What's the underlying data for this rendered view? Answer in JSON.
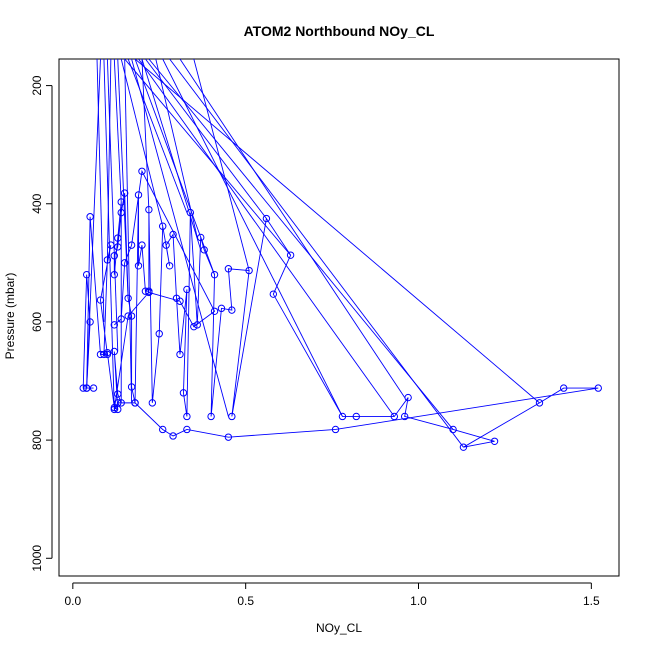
{
  "chart_data": {
    "type": "line",
    "title": "ATOM2 Northbound NOy_CL",
    "xlabel": "NOy_CL",
    "ylabel": "Pressure (mbar)",
    "xlim": [
      -0.04,
      1.58
    ],
    "ylim": [
      1030,
      155
    ],
    "y_reversed": true,
    "x_ticks": [
      "0.0",
      "0.5",
      "1.0",
      "1.5"
    ],
    "y_ticks": [
      "200",
      "400",
      "600",
      "800",
      "1000"
    ],
    "marker": "open-circle",
    "grid": false,
    "legend": "none",
    "series_color": "#0000ff",
    "series": [
      {
        "x": [
          0.06,
          0.04,
          0.05,
          0.04,
          0.03,
          0.04,
          0.05,
          0.08,
          0.1,
          0.08,
          0.11,
          0.1,
          0.09,
          0.1,
          0.12,
          0.13,
          0.12,
          0.13,
          0.14,
          0.14,
          0.13,
          0.12,
          0.12,
          0.13,
          0.14,
          0.15,
          0.16,
          0.17,
          0.17,
          0.18,
          0.19,
          0.19,
          0.2,
          0.21,
          0.22,
          0.22,
          0.23,
          0.25,
          0.26,
          0.28,
          0.27,
          0.29,
          0.3,
          0.31,
          0.33,
          0.32,
          0.33,
          0.34,
          0.36,
          0.37,
          0.38,
          0.41,
          0.4,
          0.43,
          0.46,
          0.45,
          0.51,
          0.46,
          0.56,
          0.63,
          0.58,
          0.78,
          0.82,
          0.93,
          0.97,
          0.96,
          1.1,
          1.22,
          1.13,
          1.35,
          1.42,
          1.52,
          0.76,
          0.45,
          0.33,
          0.29,
          0.26,
          0.18,
          0.13,
          0.12,
          0.16,
          0.22,
          0.31,
          0.35,
          0.41,
          0.2,
          0.17,
          0.15,
          0.14,
          0.12
        ],
        "y": [
          712,
          712,
          600,
          520,
          712,
          712,
          422,
          655,
          655,
          563,
          470,
          495,
          655,
          652,
          745,
          748,
          650,
          722,
          737,
          397,
          458,
          520,
          488,
          473,
          415,
          382,
          560,
          590,
          710,
          737,
          385,
          505,
          470,
          548,
          548,
          410,
          737,
          620,
          438,
          505,
          470,
          452,
          560,
          655,
          545,
          720,
          760,
          415,
          605,
          457,
          478,
          520,
          760,
          577,
          580,
          510,
          513,
          760,
          425,
          487,
          553,
          760,
          760,
          760,
          728,
          760,
          782,
          802,
          812,
          737,
          712,
          712,
          782,
          795,
          782,
          793,
          782,
          737,
          737,
          748,
          590,
          550,
          565,
          608,
          582,
          345,
          470,
          500,
          595,
          605
        ]
      }
    ],
    "upper_segments": [
      {
        "x": [
          0.07,
          0.09
        ],
        "y": [
          155,
          600
        ]
      },
      {
        "x": [
          0.08,
          0.04
        ],
        "y": [
          155,
          712
        ]
      },
      {
        "x": [
          0.09,
          0.12
        ],
        "y": [
          155,
          750
        ]
      },
      {
        "x": [
          0.1,
          0.13
        ],
        "y": [
          155,
          650
        ]
      },
      {
        "x": [
          0.11,
          0.1
        ],
        "y": [
          155,
          495
        ]
      },
      {
        "x": [
          0.12,
          0.14
        ],
        "y": [
          155,
          397
        ]
      },
      {
        "x": [
          0.13,
          0.16
        ],
        "y": [
          155,
          560
        ]
      },
      {
        "x": [
          0.14,
          0.26
        ],
        "y": [
          155,
          438
        ]
      },
      {
        "x": [
          0.15,
          0.17
        ],
        "y": [
          155,
          737
        ]
      },
      {
        "x": [
          0.16,
          0.33
        ],
        "y": [
          155,
          415
        ]
      },
      {
        "x": [
          0.17,
          0.45
        ],
        "y": [
          155,
          760
        ]
      },
      {
        "x": [
          0.18,
          0.41
        ],
        "y": [
          155,
          520
        ]
      },
      {
        "x": [
          0.19,
          0.93
        ],
        "y": [
          155,
          760
        ]
      },
      {
        "x": [
          0.2,
          0.22
        ],
        "y": [
          155,
          410
        ]
      },
      {
        "x": [
          0.21,
          0.56
        ],
        "y": [
          155,
          425
        ]
      },
      {
        "x": [
          0.22,
          1.1
        ],
        "y": [
          155,
          782
        ]
      },
      {
        "x": [
          0.24,
          0.36
        ],
        "y": [
          155,
          457
        ]
      },
      {
        "x": [
          0.26,
          0.78
        ],
        "y": [
          155,
          760
        ]
      },
      {
        "x": [
          0.28,
          1.13
        ],
        "y": [
          155,
          812
        ]
      },
      {
        "x": [
          0.31,
          0.96
        ],
        "y": [
          155,
          728
        ]
      },
      {
        "x": [
          0.35,
          0.51
        ],
        "y": [
          155,
          513
        ]
      },
      {
        "x": [
          0.2,
          0.37
        ],
        "y": [
          155,
          478
        ]
      },
      {
        "x": [
          0.18,
          1.35
        ],
        "y": [
          155,
          737
        ]
      },
      {
        "x": [
          0.15,
          0.63
        ],
        "y": [
          155,
          487
        ]
      }
    ]
  }
}
